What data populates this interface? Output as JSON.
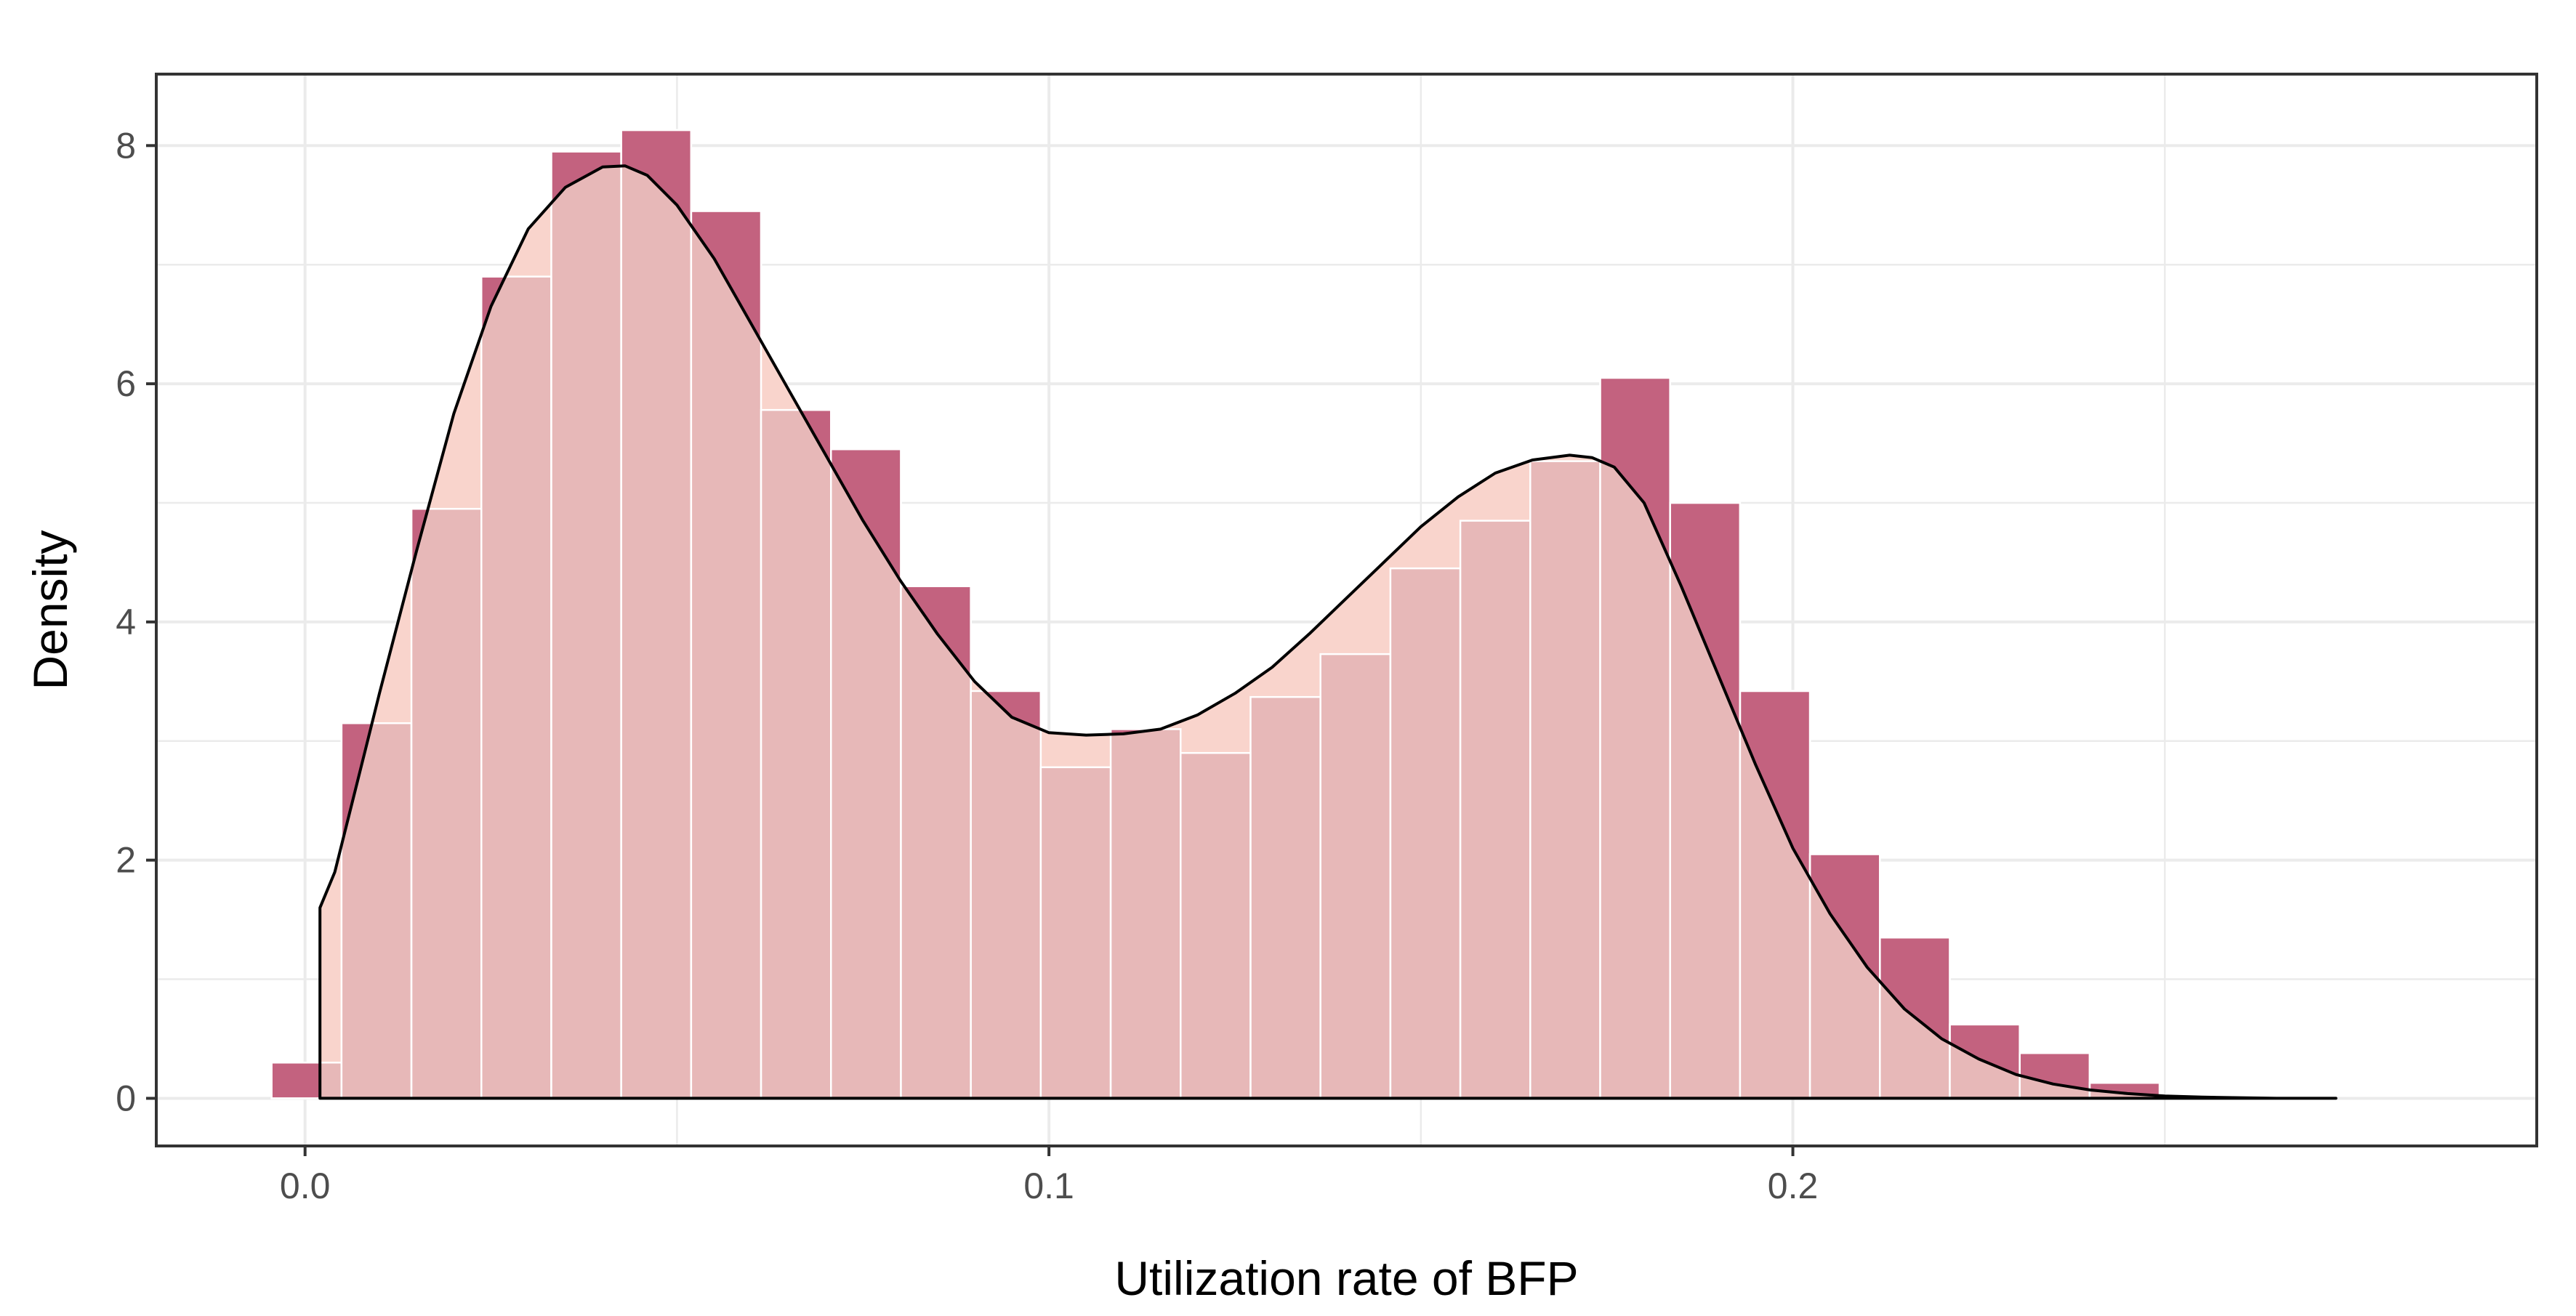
{
  "chart_data": {
    "type": "histogram",
    "title": "",
    "xlabel": "Utilization rate of BFP",
    "ylabel": "Density",
    "xlim": [
      -0.02,
      0.3
    ],
    "ylim": [
      -0.4,
      8.6
    ],
    "x_ticks": [
      0.0,
      0.1,
      0.2
    ],
    "x_tick_labels": [
      "0.0",
      "0.1",
      "0.2"
    ],
    "y_ticks": [
      0,
      2,
      4,
      6,
      8
    ],
    "y_tick_labels": [
      "0",
      "2",
      "4",
      "6",
      "8"
    ],
    "grid": true,
    "legend": "none",
    "bin_width": 0.0094,
    "bins": [
      {
        "x0": -0.0045,
        "x1": 0.0049,
        "value": 0.3
      },
      {
        "x0": 0.0049,
        "x1": 0.0143,
        "value": 3.15
      },
      {
        "x0": 0.0143,
        "x1": 0.0237,
        "value": 4.95
      },
      {
        "x0": 0.0237,
        "x1": 0.0331,
        "value": 6.9
      },
      {
        "x0": 0.0331,
        "x1": 0.0425,
        "value": 7.95
      },
      {
        "x0": 0.0425,
        "x1": 0.0519,
        "value": 8.13
      },
      {
        "x0": 0.0519,
        "x1": 0.0613,
        "value": 7.45
      },
      {
        "x0": 0.0613,
        "x1": 0.0707,
        "value": 5.78
      },
      {
        "x0": 0.0707,
        "x1": 0.0801,
        "value": 5.45
      },
      {
        "x0": 0.0801,
        "x1": 0.0895,
        "value": 4.3
      },
      {
        "x0": 0.0895,
        "x1": 0.0989,
        "value": 3.42
      },
      {
        "x0": 0.0989,
        "x1": 0.1083,
        "value": 2.78
      },
      {
        "x0": 0.1083,
        "x1": 0.1177,
        "value": 3.1
      },
      {
        "x0": 0.1177,
        "x1": 0.1271,
        "value": 2.9
      },
      {
        "x0": 0.1271,
        "x1": 0.1365,
        "value": 3.37
      },
      {
        "x0": 0.1365,
        "x1": 0.1459,
        "value": 3.73
      },
      {
        "x0": 0.1459,
        "x1": 0.1553,
        "value": 4.45
      },
      {
        "x0": 0.1553,
        "x1": 0.1647,
        "value": 4.85
      },
      {
        "x0": 0.1647,
        "x1": 0.1741,
        "value": 5.35
      },
      {
        "x0": 0.1741,
        "x1": 0.1835,
        "value": 6.05
      },
      {
        "x0": 0.1835,
        "x1": 0.1929,
        "value": 5.0
      },
      {
        "x0": 0.1929,
        "x1": 0.2023,
        "value": 3.42
      },
      {
        "x0": 0.2023,
        "x1": 0.2117,
        "value": 2.05
      },
      {
        "x0": 0.2117,
        "x1": 0.2211,
        "value": 1.35
      },
      {
        "x0": 0.2211,
        "x1": 0.2305,
        "value": 0.62
      },
      {
        "x0": 0.2305,
        "x1": 0.2399,
        "value": 0.38
      },
      {
        "x0": 0.2399,
        "x1": 0.2493,
        "value": 0.13
      }
    ],
    "density_curve": {
      "x": [
        0.002,
        0.002,
        0.004,
        0.006,
        0.008,
        0.01,
        0.015,
        0.02,
        0.025,
        0.03,
        0.035,
        0.04,
        0.043,
        0.046,
        0.05,
        0.055,
        0.06,
        0.065,
        0.07,
        0.075,
        0.08,
        0.085,
        0.09,
        0.095,
        0.1,
        0.105,
        0.11,
        0.115,
        0.12,
        0.125,
        0.13,
        0.135,
        0.14,
        0.145,
        0.15,
        0.155,
        0.16,
        0.165,
        0.17,
        0.173,
        0.176,
        0.18,
        0.185,
        0.19,
        0.195,
        0.2,
        0.205,
        0.21,
        0.215,
        0.22,
        0.225,
        0.23,
        0.235,
        0.24,
        0.245,
        0.25,
        0.255,
        0.26,
        0.265,
        0.27,
        0.273
      ],
      "y": [
        0.02,
        1.6,
        1.9,
        2.4,
        2.9,
        3.4,
        4.6,
        5.75,
        6.65,
        7.3,
        7.65,
        7.82,
        7.83,
        7.75,
        7.5,
        7.05,
        6.5,
        5.95,
        5.4,
        4.85,
        4.35,
        3.9,
        3.5,
        3.2,
        3.07,
        3.05,
        3.06,
        3.1,
        3.22,
        3.4,
        3.62,
        3.9,
        4.2,
        4.5,
        4.8,
        5.05,
        5.25,
        5.36,
        5.4,
        5.38,
        5.3,
        5.0,
        4.3,
        3.55,
        2.8,
        2.1,
        1.55,
        1.1,
        0.75,
        0.5,
        0.33,
        0.2,
        0.12,
        0.07,
        0.04,
        0.02,
        0.01,
        0.005,
        0.0,
        0.0,
        0.0
      ]
    },
    "colors": {
      "bar_dark": "#a8174f",
      "bar_overlay": "#d8a0a8",
      "bar_overlay_opacity": 0.55,
      "density_fill": "#f9d4cc",
      "density_line": "#000000",
      "grid": "#ebebeb",
      "panel_border": "#333333",
      "bar_outline": "#ffffff"
    }
  }
}
